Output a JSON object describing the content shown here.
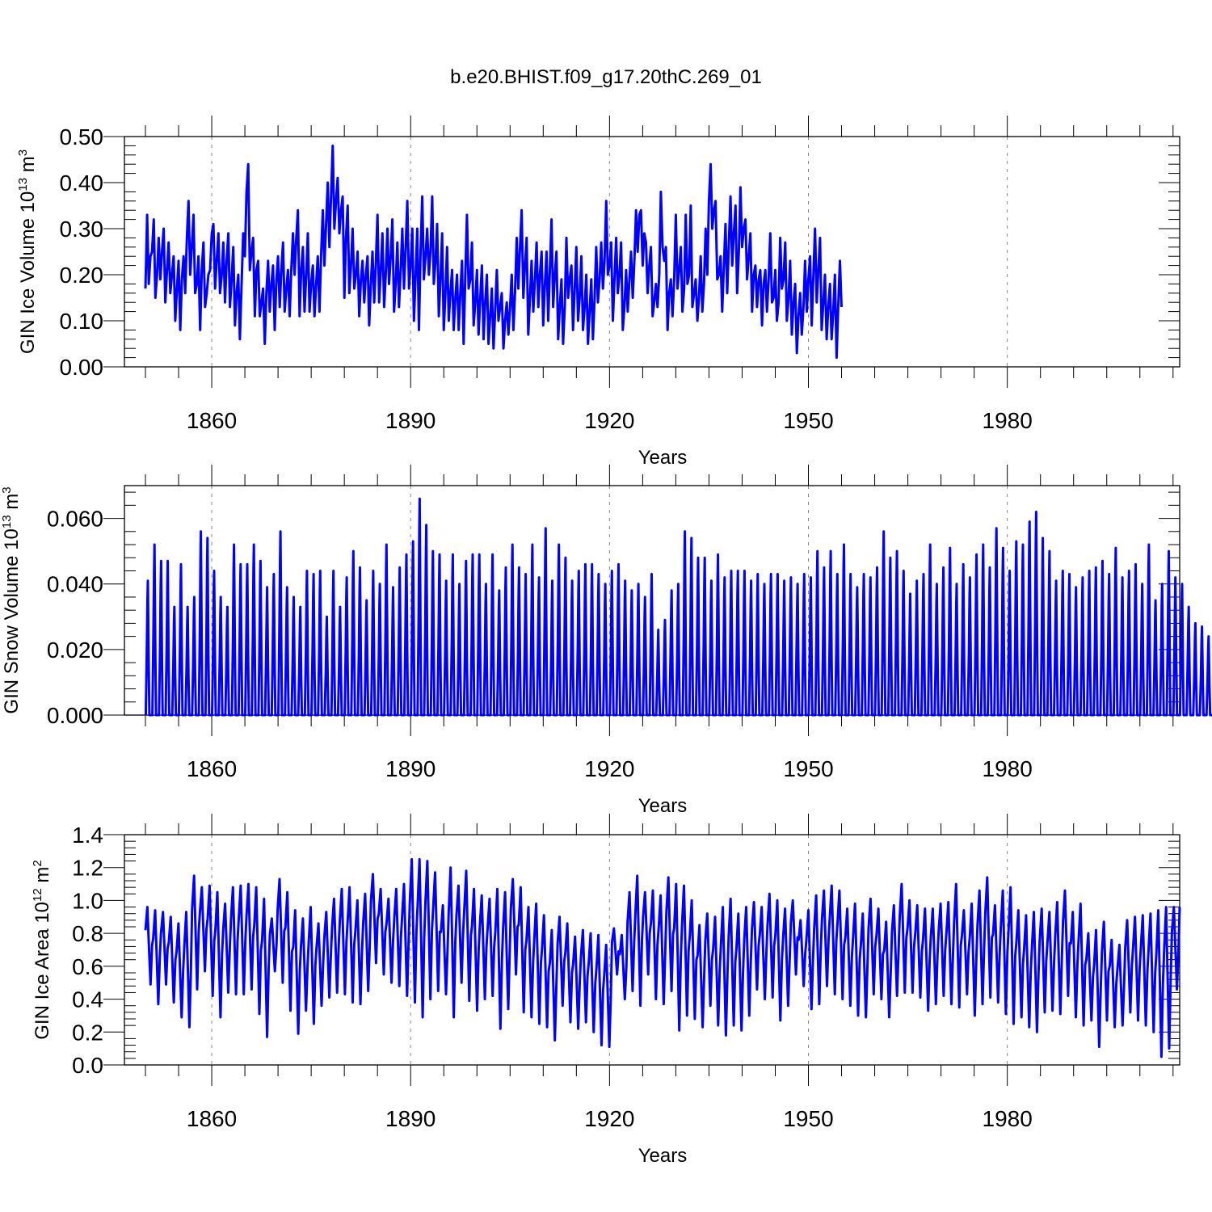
{
  "title": "b.e20.BHIST.f09_g17.20thC.269_01",
  "chart_data": [
    {
      "type": "line",
      "panel": "top",
      "series_name": "GIN Ice Volume",
      "ylabel_main": "GIN Ice Volume 10",
      "ylabel_exp": "13",
      "ylabel_unit": "m",
      "ylabel_unit_exp": "3",
      "xlabel": "Years",
      "xlim": [
        1850,
        2006
      ],
      "ylim": [
        0.0,
        0.5
      ],
      "yticks": [
        0.0,
        0.1,
        0.2,
        0.3,
        0.4,
        0.5
      ],
      "ytick_labels": [
        "0.00",
        "0.10",
        "0.20",
        "0.30",
        "0.40",
        "0.50"
      ],
      "xticks": [
        1860,
        1890,
        1920,
        1950,
        1980
      ],
      "xtick_labels": [
        "1860",
        "1890",
        "1920",
        "1950",
        "1980"
      ],
      "color": "#0000ff",
      "x_start": 1850.0,
      "samples_per_year": 4,
      "values": [
        0.17,
        0.33,
        0.18,
        0.24,
        0.25,
        0.32,
        0.15,
        0.2,
        0.28,
        0.19,
        0.25,
        0.3,
        0.14,
        0.21,
        0.27,
        0.16,
        0.2,
        0.24,
        0.1,
        0.17,
        0.23,
        0.08,
        0.19,
        0.24,
        0.16,
        0.28,
        0.36,
        0.2,
        0.26,
        0.33,
        0.16,
        0.18,
        0.24,
        0.08,
        0.21,
        0.27,
        0.13,
        0.16,
        0.2,
        0.21,
        0.29,
        0.31,
        0.17,
        0.23,
        0.29,
        0.16,
        0.2,
        0.27,
        0.14,
        0.23,
        0.29,
        0.13,
        0.19,
        0.26,
        0.09,
        0.16,
        0.2,
        0.06,
        0.18,
        0.29,
        0.24,
        0.38,
        0.44,
        0.21,
        0.25,
        0.28,
        0.11,
        0.21,
        0.23,
        0.11,
        0.14,
        0.17,
        0.05,
        0.16,
        0.23,
        0.12,
        0.18,
        0.22,
        0.08,
        0.19,
        0.24,
        0.13,
        0.21,
        0.27,
        0.12,
        0.17,
        0.21,
        0.11,
        0.21,
        0.29,
        0.2,
        0.28,
        0.34,
        0.11,
        0.21,
        0.26,
        0.12,
        0.2,
        0.29,
        0.12,
        0.18,
        0.22,
        0.11,
        0.18,
        0.24,
        0.12,
        0.24,
        0.34,
        0.22,
        0.31,
        0.4,
        0.26,
        0.37,
        0.48,
        0.3,
        0.36,
        0.41,
        0.29,
        0.34,
        0.37,
        0.15,
        0.28,
        0.35,
        0.16,
        0.22,
        0.3,
        0.17,
        0.2,
        0.25,
        0.11,
        0.19,
        0.23,
        0.14,
        0.2,
        0.24,
        0.09,
        0.18,
        0.25,
        0.14,
        0.22,
        0.33,
        0.14,
        0.21,
        0.29,
        0.13,
        0.2,
        0.3,
        0.18,
        0.24,
        0.32,
        0.12,
        0.18,
        0.27,
        0.13,
        0.21,
        0.3,
        0.17,
        0.26,
        0.36,
        0.17,
        0.22,
        0.3,
        0.1,
        0.2,
        0.3,
        0.08,
        0.25,
        0.37,
        0.19,
        0.24,
        0.3,
        0.2,
        0.25,
        0.37,
        0.18,
        0.23,
        0.31,
        0.11,
        0.19,
        0.29,
        0.08,
        0.16,
        0.26,
        0.1,
        0.16,
        0.21,
        0.08,
        0.15,
        0.2,
        0.08,
        0.16,
        0.23,
        0.05,
        0.2,
        0.33,
        0.17,
        0.19,
        0.27,
        0.09,
        0.14,
        0.21,
        0.07,
        0.15,
        0.22,
        0.06,
        0.14,
        0.2,
        0.05,
        0.11,
        0.17,
        0.04,
        0.12,
        0.21,
        0.1,
        0.13,
        0.16,
        0.04,
        0.1,
        0.14,
        0.07,
        0.13,
        0.2,
        0.08,
        0.16,
        0.28,
        0.17,
        0.26,
        0.34,
        0.15,
        0.22,
        0.28,
        0.07,
        0.15,
        0.23,
        0.12,
        0.19,
        0.27,
        0.13,
        0.2,
        0.25,
        0.09,
        0.18,
        0.25,
        0.1,
        0.21,
        0.32,
        0.13,
        0.2,
        0.25,
        0.06,
        0.13,
        0.19,
        0.05,
        0.13,
        0.28,
        0.15,
        0.19,
        0.22,
        0.08,
        0.17,
        0.26,
        0.1,
        0.15,
        0.24,
        0.08,
        0.13,
        0.2,
        0.05,
        0.12,
        0.19,
        0.06,
        0.15,
        0.26,
        0.14,
        0.19,
        0.27,
        0.17,
        0.23,
        0.36,
        0.2,
        0.22,
        0.27,
        0.1,
        0.19,
        0.28,
        0.16,
        0.2,
        0.27,
        0.08,
        0.13,
        0.21,
        0.12,
        0.19,
        0.25,
        0.15,
        0.23,
        0.34,
        0.25,
        0.33,
        0.34,
        0.22,
        0.29,
        0.27,
        0.16,
        0.22,
        0.26,
        0.11,
        0.14,
        0.18,
        0.13,
        0.2,
        0.38,
        0.26,
        0.23,
        0.26,
        0.08,
        0.16,
        0.19,
        0.11,
        0.19,
        0.33,
        0.17,
        0.21,
        0.26,
        0.12,
        0.17,
        0.33,
        0.18,
        0.2,
        0.35,
        0.13,
        0.16,
        0.19,
        0.1,
        0.15,
        0.24,
        0.12,
        0.18,
        0.3,
        0.2,
        0.36,
        0.44,
        0.3,
        0.34,
        0.36,
        0.19,
        0.2,
        0.24,
        0.12,
        0.22,
        0.31,
        0.16,
        0.27,
        0.37,
        0.22,
        0.29,
        0.35,
        0.16,
        0.25,
        0.39,
        0.26,
        0.3,
        0.32,
        0.19,
        0.24,
        0.29,
        0.12,
        0.2,
        0.22,
        0.13,
        0.19,
        0.21,
        0.09,
        0.18,
        0.21,
        0.12,
        0.19,
        0.29,
        0.14,
        0.15,
        0.21,
        0.1,
        0.14,
        0.28,
        0.17,
        0.19,
        0.27,
        0.1,
        0.15,
        0.23,
        0.07,
        0.14,
        0.18,
        0.03,
        0.11,
        0.16,
        0.07,
        0.13,
        0.23,
        0.12,
        0.19,
        0.24,
        0.09,
        0.2,
        0.3,
        0.14,
        0.21,
        0.28,
        0.08,
        0.14,
        0.2,
        0.06,
        0.13,
        0.18,
        0.06,
        0.12,
        0.2,
        0.02,
        0.13,
        0.23,
        0.13
      ]
    },
    {
      "type": "line",
      "panel": "middle",
      "series_name": "GIN Snow Volume",
      "ylabel_main": "GIN Snow Volume 10",
      "ylabel_exp": "13",
      "ylabel_unit": "m",
      "ylabel_unit_exp": "3",
      "xlabel": "Years",
      "xlim": [
        1850,
        2006
      ],
      "ylim": [
        0.0,
        0.07
      ],
      "yticks": [
        0.0,
        0.02,
        0.04,
        0.06
      ],
      "ytick_labels": [
        "0.000",
        "0.020",
        "0.040",
        "0.060"
      ],
      "xticks": [
        1860,
        1890,
        1920,
        1950,
        1980
      ],
      "xtick_labels": [
        "1860",
        "1890",
        "1920",
        "1950",
        "1980"
      ],
      "color": "#0000ff",
      "x_start": 1850.0,
      "peaks": [
        0.041,
        0.052,
        0.047,
        0.047,
        0.033,
        0.046,
        0.033,
        0.036,
        0.056,
        0.054,
        0.044,
        0.036,
        0.033,
        0.052,
        0.046,
        0.046,
        0.052,
        0.047,
        0.039,
        0.043,
        0.056,
        0.039,
        0.036,
        0.033,
        0.044,
        0.043,
        0.044,
        0.03,
        0.044,
        0.033,
        0.042,
        0.05,
        0.045,
        0.035,
        0.044,
        0.04,
        0.052,
        0.039,
        0.045,
        0.049,
        0.053,
        0.066,
        0.058,
        0.05,
        0.049,
        0.041,
        0.049,
        0.04,
        0.047,
        0.049,
        0.049,
        0.04,
        0.049,
        0.038,
        0.045,
        0.052,
        0.045,
        0.043,
        0.052,
        0.042,
        0.057,
        0.041,
        0.052,
        0.048,
        0.041,
        0.044,
        0.046,
        0.046,
        0.043,
        0.04,
        0.044,
        0.046,
        0.041,
        0.038,
        0.04,
        0.036,
        0.043,
        0.026,
        0.029,
        0.038,
        0.04,
        0.056,
        0.054,
        0.048,
        0.048,
        0.041,
        0.049,
        0.042,
        0.044,
        0.044,
        0.044,
        0.041,
        0.043,
        0.04,
        0.043,
        0.043,
        0.041,
        0.042,
        0.04,
        0.043,
        0.042,
        0.05,
        0.045,
        0.05,
        0.043,
        0.052,
        0.043,
        0.039,
        0.043,
        0.042,
        0.045,
        0.056,
        0.048,
        0.05,
        0.044,
        0.037,
        0.041,
        0.043,
        0.052,
        0.04,
        0.045,
        0.051,
        0.04,
        0.046,
        0.042,
        0.049,
        0.052,
        0.045,
        0.057,
        0.051,
        0.044,
        0.053,
        0.052,
        0.059,
        0.062,
        0.054,
        0.05,
        0.041,
        0.044,
        0.043,
        0.039,
        0.042,
        0.044,
        0.045,
        0.047,
        0.043,
        0.051,
        0.042,
        0.044,
        0.046,
        0.04,
        0.052,
        0.035,
        0.04,
        0.05,
        0.042,
        0.04,
        0.033,
        0.028,
        0.027,
        0.024,
        0.032
      ]
    },
    {
      "type": "line",
      "panel": "bottom",
      "series_name": "GIN Ice Area",
      "ylabel_main": "GIN Ice Area 10",
      "ylabel_exp": "12",
      "ylabel_unit": "m",
      "ylabel_unit_exp": "2",
      "xlabel": "Years",
      "xlim": [
        1850,
        2006
      ],
      "ylim": [
        0.0,
        1.4
      ],
      "yticks": [
        0.0,
        0.2,
        0.4,
        0.6,
        0.8,
        1.0,
        1.2,
        1.4
      ],
      "ytick_labels": [
        "0.0",
        "0.2",
        "0.4",
        "0.6",
        "0.8",
        "1.0",
        "1.2",
        "1.4"
      ],
      "xticks": [
        1860,
        1890,
        1920,
        1950,
        1980
      ],
      "xtick_labels": [
        "1860",
        "1890",
        "1920",
        "1950",
        "1980"
      ],
      "color": "#0000ff",
      "x_start": 1850.0,
      "maxima": [
        0.96,
        0.94,
        0.93,
        0.9,
        0.86,
        0.93,
        1.15,
        1.08,
        1.09,
        1.05,
        0.98,
        1.08,
        1.09,
        1.1,
        1.08,
        1.01,
        0.89,
        1.13,
        1.05,
        0.94,
        0.89,
        0.96,
        0.86,
        0.93,
        1.01,
        1.07,
        1.08,
        1.0,
        1.04,
        1.16,
        1.07,
        1.01,
        1.07,
        1.1,
        1.25,
        1.25,
        1.24,
        1.17,
        0.97,
        1.2,
        1.09,
        1.18,
        1.07,
        1.03,
        1.01,
        1.07,
        1.05,
        1.13,
        1.08,
        0.96,
        0.98,
        0.91,
        0.82,
        0.9,
        0.86,
        0.78,
        0.82,
        0.8,
        0.79,
        0.73,
        0.83,
        0.79,
        1.05,
        1.15,
        1.05,
        1.06,
        1.03,
        1.14,
        1.1,
        1.09,
        1.0,
        0.85,
        0.92,
        0.9,
        0.96,
        1.01,
        0.92,
        0.96,
        0.99,
        0.96,
        1.04,
        1.0,
        0.95,
        1.0,
        0.88,
        0.94,
        1.03,
        1.06,
        1.09,
        1.06,
        0.95,
        0.98,
        0.92,
        1.01,
        0.95,
        0.87,
        0.97,
        1.1,
        1.0,
        0.97,
        0.95,
        0.95,
        0.98,
        0.99,
        1.1,
        0.94,
        0.98,
        1.06,
        1.14,
        0.97,
        1.06,
        1.08,
        0.94,
        0.91,
        0.93,
        0.95,
        0.93,
        0.99,
        1.06,
        0.93,
        0.98,
        0.8,
        0.82,
        0.87,
        0.76,
        0.73,
        0.88,
        0.9,
        0.91,
        0.92,
        0.94,
        0.96,
        0.96
      ],
      "minima": [
        0.49,
        0.37,
        0.49,
        0.38,
        0.29,
        0.23,
        0.46,
        0.57,
        0.42,
        0.29,
        0.44,
        0.43,
        0.43,
        0.46,
        0.31,
        0.17,
        0.57,
        0.5,
        0.33,
        0.19,
        0.33,
        0.25,
        0.36,
        0.41,
        0.44,
        0.43,
        0.38,
        0.37,
        0.45,
        0.62,
        0.55,
        0.5,
        0.48,
        0.42,
        0.38,
        0.29,
        0.4,
        0.45,
        0.43,
        0.29,
        0.5,
        0.39,
        0.33,
        0.4,
        0.42,
        0.22,
        0.34,
        0.55,
        0.32,
        0.29,
        0.25,
        0.23,
        0.15,
        0.36,
        0.26,
        0.22,
        0.26,
        0.2,
        0.12,
        0.11,
        0.55,
        0.4,
        0.45,
        0.36,
        0.55,
        0.4,
        0.37,
        0.45,
        0.21,
        0.3,
        0.28,
        0.23,
        0.36,
        0.24,
        0.18,
        0.24,
        0.21,
        0.3,
        0.46,
        0.4,
        0.41,
        0.27,
        0.36,
        0.55,
        0.48,
        0.34,
        0.37,
        0.48,
        0.43,
        0.4,
        0.36,
        0.3,
        0.29,
        0.43,
        0.4,
        0.29,
        0.42,
        0.44,
        0.44,
        0.41,
        0.33,
        0.37,
        0.42,
        0.37,
        0.35,
        0.43,
        0.3,
        0.37,
        0.41,
        0.38,
        0.31,
        0.25,
        0.29,
        0.23,
        0.2,
        0.32,
        0.33,
        0.31,
        0.42,
        0.29,
        0.24,
        0.27,
        0.11,
        0.27,
        0.23,
        0.24,
        0.32,
        0.27,
        0.24,
        0.2,
        0.05,
        0.1,
        0.46
      ]
    }
  ]
}
